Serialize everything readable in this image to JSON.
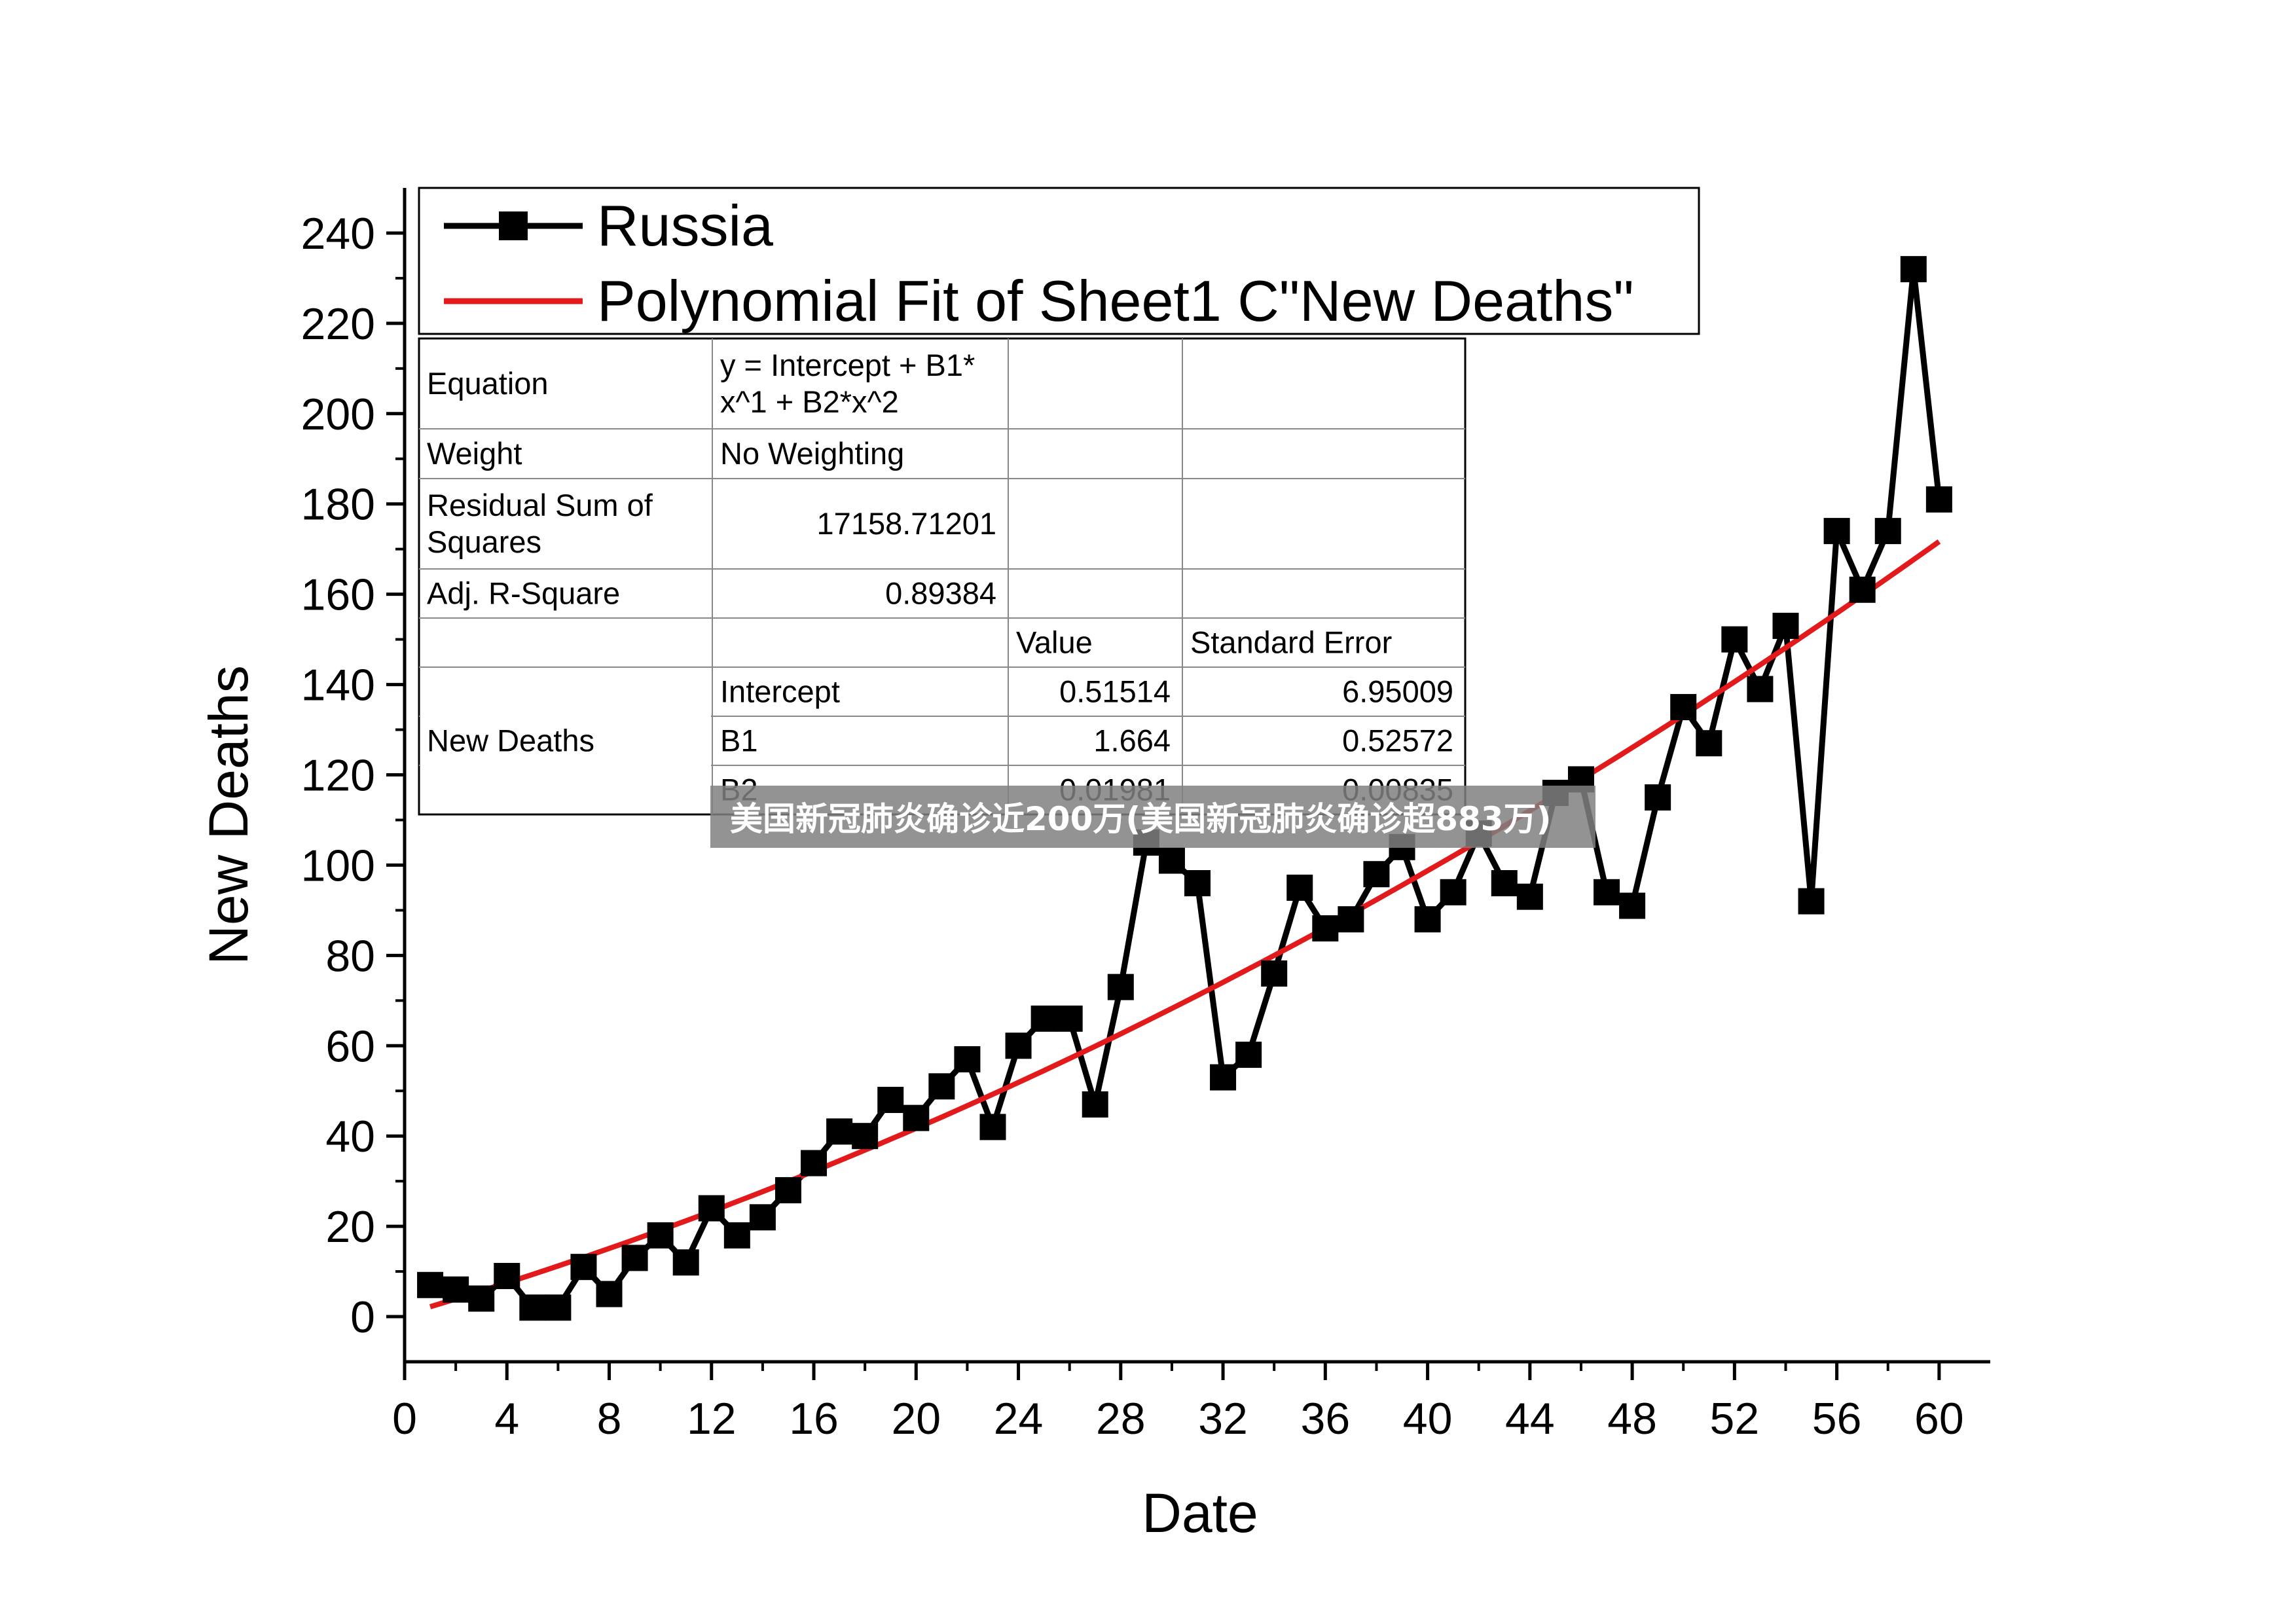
{
  "watermark": "美国新冠肺炎确诊近200万(美国新冠肺炎确诊超883万)",
  "colors": {
    "data_series": "#000000",
    "fit_line": "#e31a1c",
    "watermark_bg": "#808080"
  },
  "chart_data": {
    "type": "scatter",
    "xlabel": "Date",
    "ylabel": "New Deaths",
    "xlim": [
      0,
      62
    ],
    "ylim": [
      -10,
      250
    ],
    "xticks": [
      0,
      4,
      8,
      12,
      16,
      20,
      24,
      28,
      32,
      36,
      40,
      44,
      48,
      52,
      56,
      60
    ],
    "yticks": [
      0,
      20,
      40,
      60,
      80,
      100,
      120,
      140,
      160,
      180,
      200,
      220,
      240
    ],
    "legend_position": "top",
    "legend": {
      "entries": [
        "Russia",
        "Polynomial Fit of Sheet1 C\"New Deaths\""
      ]
    },
    "series": [
      {
        "name": "Russia",
        "marker": "square",
        "x": [
          1,
          2,
          3,
          4,
          5,
          6,
          7,
          8,
          9,
          10,
          11,
          12,
          13,
          14,
          15,
          16,
          17,
          18,
          19,
          20,
          21,
          22,
          23,
          24,
          25,
          26,
          27,
          28,
          29,
          30,
          31,
          32,
          33,
          34,
          35,
          36,
          37,
          38,
          39,
          40,
          41,
          42,
          43,
          44,
          45,
          46,
          47,
          48,
          49,
          50,
          51,
          52,
          53,
          54,
          55,
          56,
          57,
          58,
          59,
          60
        ],
        "y": [
          7,
          6,
          4,
          9,
          2,
          2,
          11,
          5,
          13,
          18,
          12,
          24,
          18,
          22,
          28,
          34,
          41,
          40,
          48,
          44,
          51,
          57,
          42,
          60,
          66,
          66,
          47,
          73,
          105,
          101,
          96,
          53,
          58,
          76,
          95,
          86,
          88,
          98,
          104,
          88,
          94,
          107,
          96,
          93,
          116,
          119,
          94,
          91,
          115,
          135,
          127,
          150,
          139,
          153,
          92,
          174,
          161,
          174,
          232,
          181
        ]
      },
      {
        "name": "Polynomial Fit of Sheet1 C\"New Deaths\"",
        "type": "line",
        "coefficients": {
          "intercept": 0.51514,
          "b1": 1.664,
          "b2": 0.01981
        },
        "x_range": [
          1,
          60
        ]
      }
    ],
    "fit_table": {
      "rows": [
        [
          "Equation",
          "y = Intercept + B1*\nx^1 + B2*x^2",
          "",
          ""
        ],
        [
          "Weight",
          "No Weighting",
          "",
          ""
        ],
        [
          "Residual Sum of\nSquares",
          "17158.71201",
          "",
          ""
        ],
        [
          "Adj. R-Square",
          "0.89384",
          "",
          ""
        ],
        [
          "",
          "",
          "Value",
          "Standard Error"
        ],
        [
          "New Deaths",
          "Intercept",
          "0.51514",
          "6.95009"
        ],
        [
          "",
          "B1",
          "1.664",
          "0.52572"
        ],
        [
          "",
          "B2",
          "0.01981",
          "0.00835"
        ]
      ]
    }
  }
}
